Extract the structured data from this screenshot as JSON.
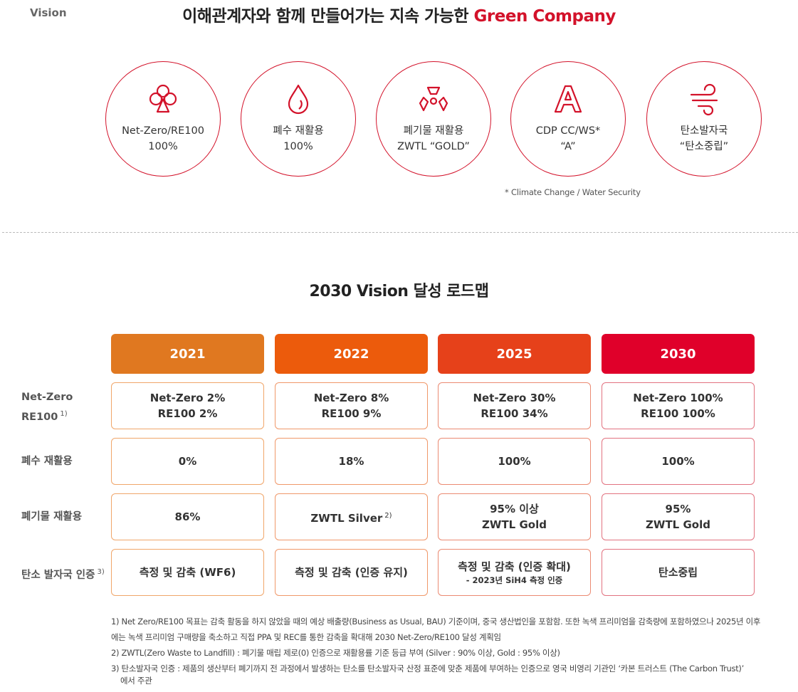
{
  "vision": {
    "label": "Vision",
    "headline_prefix": "이해관계자와 함께 만들어가는 지속 가능한 ",
    "headline_accent": "Green Company",
    "accent_color": "#d3122a",
    "goals": [
      {
        "icon": "clover-icon",
        "line1": "Net-Zero/RE100",
        "line2": "100%"
      },
      {
        "icon": "water-drop-icon",
        "line1": "폐수 재활용",
        "line2": "100%"
      },
      {
        "icon": "recycle-triangle-icon",
        "line1": "폐기물 재활용",
        "line2": "ZWTL “GOLD”"
      },
      {
        "icon": "letter-a-icon",
        "line1": "CDP CC/WS*",
        "line2": "“A”"
      },
      {
        "icon": "wind-icon",
        "line1": "탄소발자국",
        "line2": "“탄소중립”"
      }
    ],
    "note": "* Climate Change / Water Security"
  },
  "roadmap": {
    "title": "2030 Vision 달성 로드맵",
    "years": [
      {
        "label": "2021",
        "color": "#e07820"
      },
      {
        "label": "2022",
        "color": "#ec5b0c"
      },
      {
        "label": "2025",
        "color": "#e6411a"
      },
      {
        "label": "2030",
        "color": "#e0002a"
      }
    ],
    "rows": [
      {
        "label_line1": "Net-Zero",
        "label_line2": "RE100",
        "label_sup": "1)",
        "cells": [
          {
            "line1": "Net-Zero 2%",
            "line2": "RE100 2%"
          },
          {
            "line1": "Net-Zero 8%",
            "line2": "RE100 9%"
          },
          {
            "line1": "Net-Zero 30%",
            "line2": "RE100 34%"
          },
          {
            "line1": "Net-Zero 100%",
            "line2": "RE100 100%"
          }
        ]
      },
      {
        "label_line1": "폐수 재활용",
        "cells": [
          {
            "line1": "0%"
          },
          {
            "line1": "18%"
          },
          {
            "line1": "100%"
          },
          {
            "line1": "100%"
          }
        ]
      },
      {
        "label_line1": "폐기물 재활용",
        "cells": [
          {
            "line1": "86%"
          },
          {
            "line1": "ZWTL Silver",
            "sup": "2)"
          },
          {
            "line1": "95% 이상",
            "line2": "ZWTL Gold"
          },
          {
            "line1": "95%",
            "line2": "ZWTL Gold"
          }
        ]
      },
      {
        "label_line1": "탄소 발자국 인증",
        "label_sup": "3)",
        "cells": [
          {
            "line1": "측정 및 감축 (WF6)"
          },
          {
            "line1": "측정 및 감축 (인증 유지)"
          },
          {
            "line1": "측정 및 감축 (인증 확대)",
            "sub": "- 2023년 SiH4 측정 인증"
          },
          {
            "line1": "탄소중립"
          }
        ]
      }
    ]
  },
  "footnotes": {
    "fn1a": "1) Net Zero/RE100  목표는 감축 활동을 하지 않았을 때의 예상 배출량(Business as Usual, BAU) 기준이며, 중국 생산법인을 포함함. 또한 녹색 프리미엄을 감축량에 포함하였으나 2025년 이후",
    "fn1b": "에는 녹색 프리미엄 구매량을 축소하고 직접 PPA 및 REC를 통한 감축을 확대해 2030 Net-Zero/RE100 달성 계획임",
    "fn2": "2) ZWTL(Zero Waste to Landfill) : 폐기물 매립 제로(0) 인증으로 재활용률 기준 등급 부여 (Silver : 90% 이상, Gold : 95% 이상)",
    "fn3a": "3) 탄소발자국 인증 : 제품의 생산부터 폐기까지 전 과정에서 발생하는 탄소를 탄소발자국 산정 표준에 맞춘 제품에 부여하는 인증으로 영국 비영리 기관인 ‘카본 트러스트 (The Carbon Trust)’",
    "fn3b": "에서 주관"
  }
}
